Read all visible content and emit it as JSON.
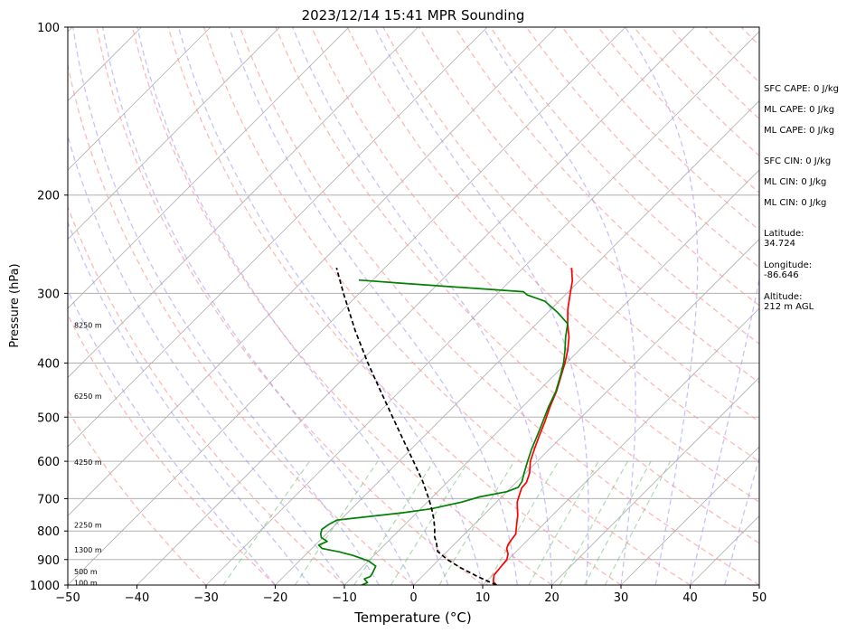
{
  "chart_data": {
    "type": "line",
    "subtype": "skew-t log-p",
    "title": "2023/12/14 15:41 MPR Sounding",
    "xlabel": "Temperature (°C)",
    "ylabel": "Pressure (hPa)",
    "xlim": [
      -50,
      50
    ],
    "ylim": [
      1000,
      100
    ],
    "y_scale": "log",
    "x_ticks": [
      -50,
      -40,
      -30,
      -20,
      -10,
      0,
      10,
      20,
      30,
      40,
      50
    ],
    "y_ticks": [
      1000,
      900,
      800,
      700,
      600,
      500,
      400,
      300,
      200,
      100
    ],
    "grid": true,
    "height_labels": [
      {
        "text": "100 m",
        "p": 990
      },
      {
        "text": "500 m",
        "p": 945
      },
      {
        "text": "1300 m",
        "p": 865
      },
      {
        "text": "2250 m",
        "p": 780
      },
      {
        "text": "4250 m",
        "p": 602
      },
      {
        "text": "6250 m",
        "p": 458
      },
      {
        "text": "8250 m",
        "p": 342
      }
    ],
    "series": [
      {
        "type": "temperature",
        "color": "#ff0000",
        "points": [
          [
            1000,
            12.0
          ],
          [
            985,
            11.0
          ],
          [
            960,
            10.2
          ],
          [
            930,
            10.0
          ],
          [
            900,
            9.8
          ],
          [
            880,
            9.2
          ],
          [
            860,
            8.2
          ],
          [
            845,
            7.8
          ],
          [
            830,
            7.6
          ],
          [
            810,
            7.4
          ],
          [
            790,
            6.6
          ],
          [
            770,
            5.8
          ],
          [
            750,
            5.0
          ],
          [
            730,
            4.0
          ],
          [
            710,
            3.0
          ],
          [
            690,
            2.3
          ],
          [
            670,
            1.6
          ],
          [
            655,
            1.5
          ],
          [
            630,
            0.6
          ],
          [
            600,
            -1.0
          ],
          [
            570,
            -2.2
          ],
          [
            540,
            -3.4
          ],
          [
            510,
            -4.6
          ],
          [
            480,
            -6.0
          ],
          [
            450,
            -7.3
          ],
          [
            420,
            -9.0
          ],
          [
            400,
            -10.2
          ],
          [
            380,
            -11.6
          ],
          [
            360,
            -13.3
          ],
          [
            340,
            -15.5
          ],
          [
            320,
            -17.6
          ],
          [
            300,
            -19.5
          ],
          [
            285,
            -21.0
          ],
          [
            270,
            -23.0
          ]
        ]
      },
      {
        "type": "dewpoint",
        "color": "#008000",
        "points": [
          [
            1000,
            -7.5
          ],
          [
            990,
            -7.0
          ],
          [
            975,
            -8.0
          ],
          [
            965,
            -7.5
          ],
          [
            950,
            -7.7
          ],
          [
            925,
            -8.2
          ],
          [
            905,
            -10.0
          ],
          [
            885,
            -13.0
          ],
          [
            872,
            -15.5
          ],
          [
            860,
            -18.5
          ],
          [
            848,
            -19.5
          ],
          [
            835,
            -18.8
          ],
          [
            822,
            -20.2
          ],
          [
            810,
            -20.8
          ],
          [
            795,
            -21.3
          ],
          [
            778,
            -21.0
          ],
          [
            765,
            -20.5
          ],
          [
            742,
            -12.0
          ],
          [
            730,
            -8.5
          ],
          [
            710,
            -5.0
          ],
          [
            695,
            -3.2
          ],
          [
            680,
            0.0
          ],
          [
            668,
            1.0
          ],
          [
            652,
            0.7
          ],
          [
            630,
            -0.2
          ],
          [
            600,
            -1.4
          ],
          [
            570,
            -2.6
          ],
          [
            540,
            -3.7
          ],
          [
            510,
            -4.9
          ],
          [
            480,
            -6.2
          ],
          [
            450,
            -7.4
          ],
          [
            420,
            -9.1
          ],
          [
            400,
            -10.4
          ],
          [
            380,
            -12.0
          ],
          [
            360,
            -13.8
          ],
          [
            340,
            -15.5
          ],
          [
            325,
            -18.5
          ],
          [
            310,
            -22.0
          ],
          [
            302,
            -25.5
          ],
          [
            298,
            -26.5
          ],
          [
            288,
            -45.0
          ],
          [
            284,
            -52.0
          ]
        ]
      },
      {
        "type": "parcel",
        "color": "#000000",
        "style": "dashed",
        "points": [
          [
            1000,
            12.0
          ],
          [
            965,
            8.0
          ],
          [
            930,
            4.2
          ],
          [
            900,
            1.2
          ],
          [
            870,
            -1.4
          ],
          [
            840,
            -2.8
          ],
          [
            820,
            -3.9
          ],
          [
            790,
            -5.2
          ],
          [
            760,
            -6.7
          ],
          [
            730,
            -8.4
          ],
          [
            700,
            -10.3
          ],
          [
            650,
            -13.8
          ],
          [
            600,
            -17.9
          ],
          [
            550,
            -22.4
          ],
          [
            500,
            -27.3
          ],
          [
            450,
            -32.7
          ],
          [
            400,
            -38.7
          ],
          [
            350,
            -45.2
          ],
          [
            300,
            -52.3
          ],
          [
            270,
            -57.0
          ]
        ]
      }
    ]
  },
  "indices": {
    "sfc_cape": "SFC CAPE: 0 J/kg",
    "ml_cape_1": "ML CAPE: 0 J/kg",
    "ml_cape_2": "ML CAPE: 0 J/kg",
    "sfc_cin": "SFC CIN: 0 J/kg",
    "ml_cin_1": "ML CIN: 0 J/kg",
    "ml_cin_2": "ML CIN: 0 J/kg"
  },
  "location": {
    "latitude_label": "Latitude:",
    "latitude_value": "34.724",
    "longitude_label": "Longitude:",
    "longitude_value": "-86.646",
    "altitude_label": "Altitude:",
    "altitude_value": "212 m AGL"
  }
}
